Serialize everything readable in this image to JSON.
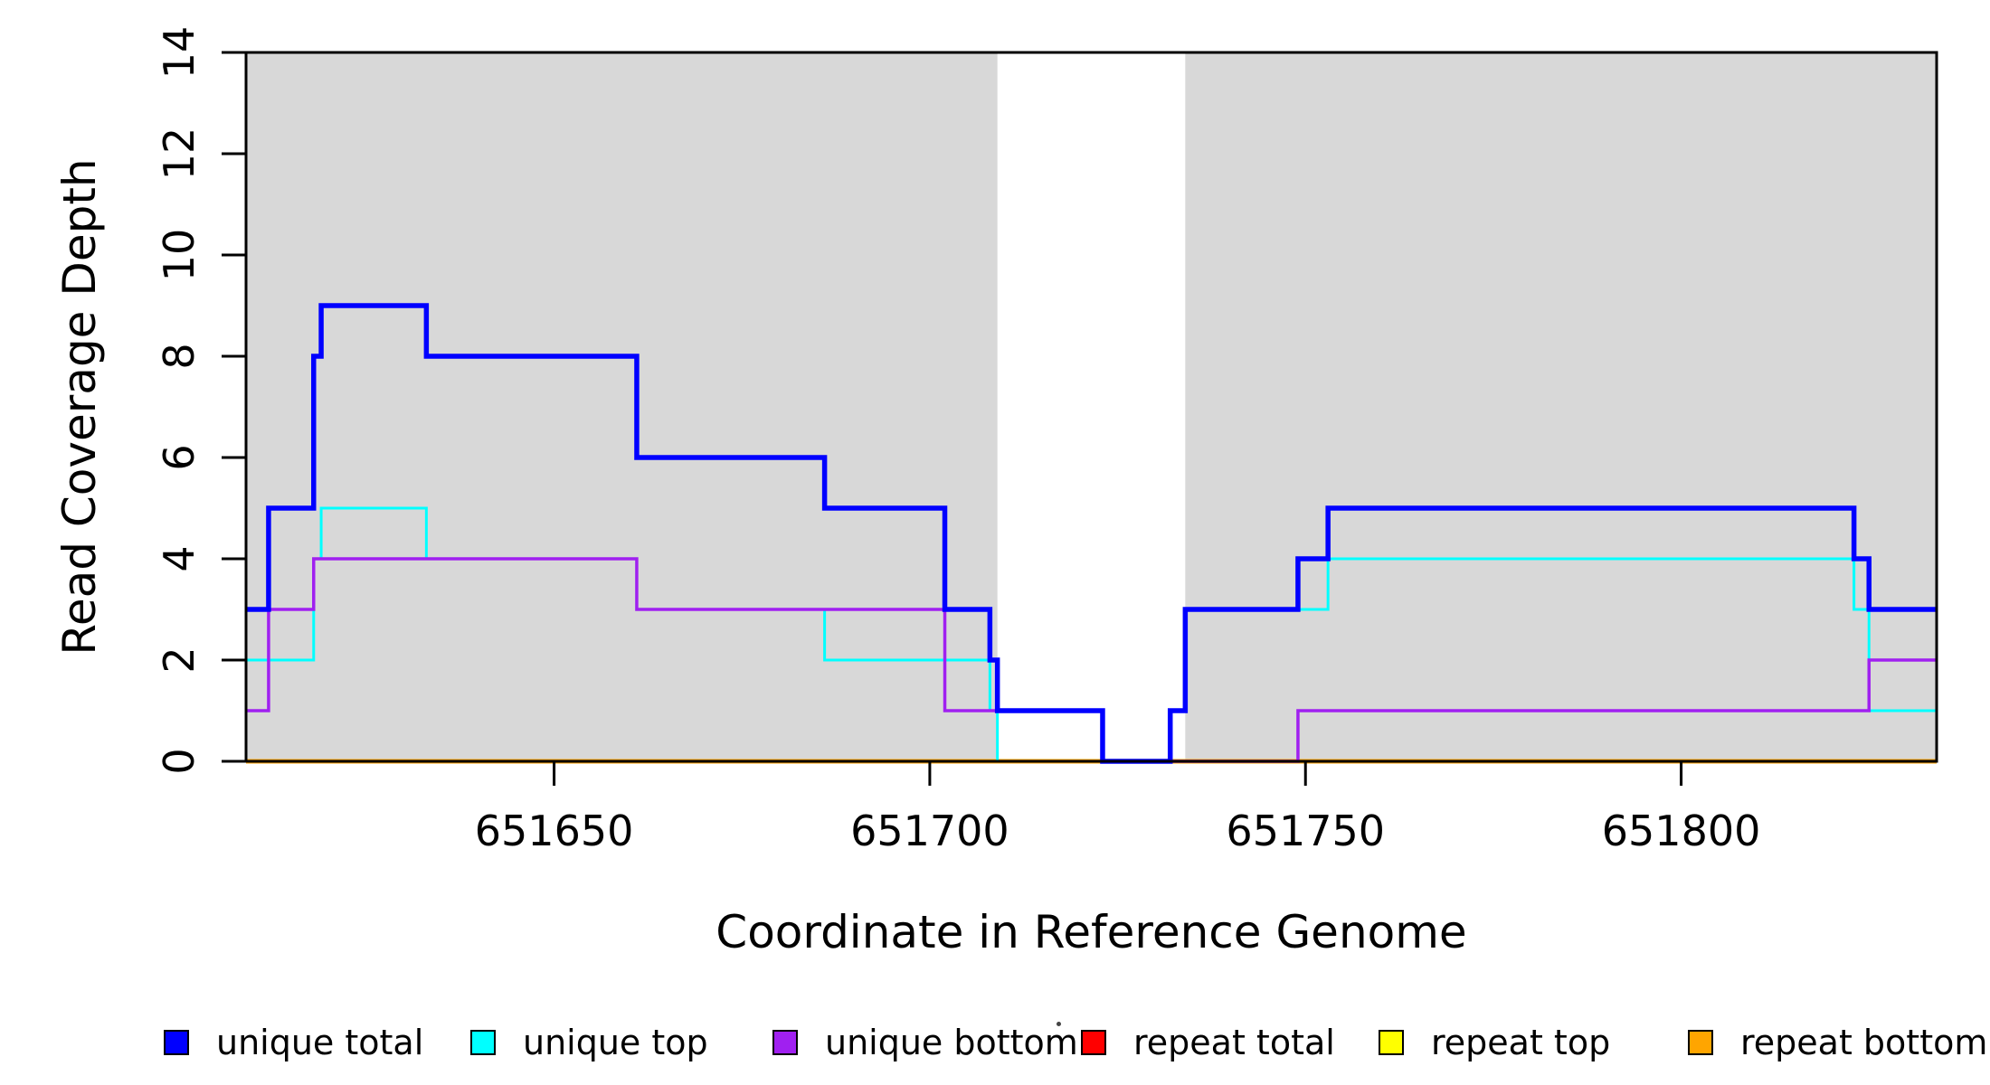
{
  "axes": {
    "x_title": "Coordinate in Reference Genome",
    "y_title": "Read Coverage Depth"
  },
  "legend": {
    "items": [
      {
        "label": "unique total",
        "color": "#0000FF"
      },
      {
        "label": "unique top",
        "color": "#00FFFF"
      },
      {
        "label": "unique bottom",
        "color": "#A020F0"
      },
      {
        "label": "repeat total",
        "color": "#FF0000"
      },
      {
        "label": "repeat top",
        "color": "#FFFF00"
      },
      {
        "label": "repeat bottom",
        "color": "#FFA500"
      }
    ]
  },
  "chart_data": {
    "type": "line",
    "subtype": "step-coverage",
    "xlabel": "Coordinate in Reference Genome",
    "ylabel": "Read Coverage Depth",
    "xlim": [
      651609,
      651834
    ],
    "ylim": [
      0,
      14
    ],
    "x_ticks": [
      651650,
      651700,
      651750,
      651800
    ],
    "y_ticks": [
      0,
      2,
      4,
      6,
      8,
      10,
      12,
      14
    ],
    "grid": false,
    "legend_position": "bottom",
    "shade_color": "#d8d8d8",
    "shaded_regions": [
      {
        "from": 651609,
        "to": 651709
      },
      {
        "from": 651734,
        "to": 651834
      }
    ],
    "series": [
      {
        "name": "repeat total",
        "color": "#FF0000",
        "width": 4,
        "steps": [
          [
            651609,
            0
          ]
        ]
      },
      {
        "name": "repeat top",
        "color": "#FFFF00",
        "width": 4,
        "steps": [
          [
            651609,
            0
          ]
        ]
      },
      {
        "name": "repeat bottom",
        "color": "#FFA500",
        "width": 5,
        "steps": [
          [
            651609,
            0
          ]
        ]
      },
      {
        "name": "unique top",
        "color": "#00FFFF",
        "width": 3,
        "steps": [
          [
            651609,
            2
          ],
          [
            651618,
            4
          ],
          [
            651619,
            5
          ],
          [
            651633,
            4
          ],
          [
            651661,
            3
          ],
          [
            651686,
            2
          ],
          [
            651708,
            1
          ],
          [
            651709,
            0
          ],
          [
            651732,
            1
          ],
          [
            651734,
            3
          ],
          [
            651753,
            4
          ],
          [
            651823,
            3
          ],
          [
            651825,
            1
          ]
        ]
      },
      {
        "name": "unique bottom",
        "color": "#A020F0",
        "width": 3.5,
        "steps": [
          [
            651609,
            1
          ],
          [
            651612,
            3
          ],
          [
            651618,
            4
          ],
          [
            651661,
            3
          ],
          [
            651702,
            1
          ],
          [
            651723,
            0
          ],
          [
            651749,
            1
          ],
          [
            651825,
            2
          ]
        ]
      },
      {
        "name": "unique total",
        "color": "#0000FF",
        "width": 5.5,
        "steps": [
          [
            651609,
            3
          ],
          [
            651612,
            5
          ],
          [
            651618,
            8
          ],
          [
            651619,
            9
          ],
          [
            651633,
            8
          ],
          [
            651661,
            6
          ],
          [
            651686,
            5
          ],
          [
            651702,
            3
          ],
          [
            651708,
            2
          ],
          [
            651709,
            1
          ],
          [
            651723,
            0
          ],
          [
            651732,
            1
          ],
          [
            651734,
            3
          ],
          [
            651749,
            4
          ],
          [
            651753,
            5
          ],
          [
            651823,
            4
          ],
          [
            651825,
            3
          ]
        ]
      }
    ]
  }
}
